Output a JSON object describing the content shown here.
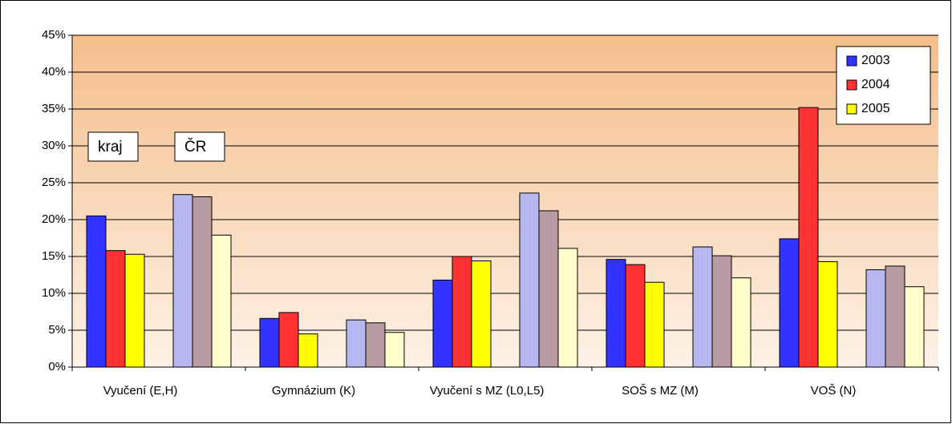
{
  "chart_data": {
    "type": "bar",
    "categories": [
      "Vyučení (E,H)",
      null,
      "Gymnázium (K)",
      null,
      "Vyučení s MZ (L0,L5)",
      null,
      "SOŠ s MZ (M)",
      null,
      "VOŠ (N)",
      null
    ],
    "series": [
      {
        "name": "2003",
        "color": "#3333ff",
        "alt_color": "#b8b8f0",
        "values": [
          20.5,
          23.4,
          6.6,
          6.4,
          11.8,
          23.6,
          14.6,
          16.3,
          17.4,
          13.2
        ]
      },
      {
        "name": "2004",
        "color": "#ff3333",
        "alt_color": "#b89aa2",
        "values": [
          15.8,
          23.1,
          7.4,
          6.0,
          15.0,
          21.2,
          13.9,
          15.1,
          35.2,
          13.7
        ]
      },
      {
        "name": "2005",
        "color": "#ffff00",
        "alt_color": "#ffffcc",
        "values": [
          15.3,
          17.9,
          4.5,
          4.7,
          14.4,
          16.1,
          11.5,
          12.1,
          14.3,
          10.9
        ]
      }
    ],
    "annotations": [
      "kraj",
      "ČR"
    ],
    "ylim": [
      0,
      45
    ],
    "yticks": [
      {
        "value": 0,
        "label": "0%"
      },
      {
        "value": 5,
        "label": "5%"
      },
      {
        "value": 10,
        "label": "10%"
      },
      {
        "value": 15,
        "label": "15%"
      },
      {
        "value": 20,
        "label": "20%"
      },
      {
        "value": 25,
        "label": "25%"
      },
      {
        "value": 30,
        "label": "30%"
      },
      {
        "value": 35,
        "label": "35%"
      },
      {
        "value": 40,
        "label": "40%"
      },
      {
        "value": 45,
        "label": "45%"
      }
    ],
    "grid": true,
    "legend": "top-right"
  }
}
